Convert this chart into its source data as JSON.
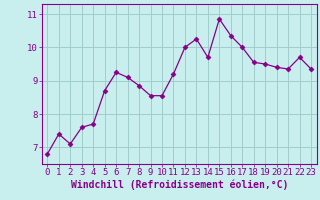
{
  "x": [
    0,
    1,
    2,
    3,
    4,
    5,
    6,
    7,
    8,
    9,
    10,
    11,
    12,
    13,
    14,
    15,
    16,
    17,
    18,
    19,
    20,
    21,
    22,
    23
  ],
  "y": [
    6.8,
    7.4,
    7.1,
    7.6,
    7.7,
    8.7,
    9.25,
    9.1,
    8.85,
    8.55,
    8.55,
    9.2,
    10.0,
    10.25,
    9.7,
    10.85,
    10.35,
    10.0,
    9.55,
    9.5,
    9.4,
    9.35,
    9.7,
    9.35
  ],
  "line_color": "#880088",
  "marker": "D",
  "marker_size": 2.5,
  "line_width": 0.9,
  "bg_color": "#c8eeee",
  "grid_color": "#a0cccc",
  "xlabel": "Windchill (Refroidissement éolien,°C)",
  "xlabel_fontsize": 7,
  "tick_fontsize": 6.5,
  "ylim": [
    6.5,
    11.3
  ],
  "xlim": [
    -0.5,
    23.5
  ],
  "yticks": [
    7,
    8,
    9,
    10,
    11
  ],
  "xticks": [
    0,
    1,
    2,
    3,
    4,
    5,
    6,
    7,
    8,
    9,
    10,
    11,
    12,
    13,
    14,
    15,
    16,
    17,
    18,
    19,
    20,
    21,
    22,
    23
  ],
  "spine_color": "#880088"
}
